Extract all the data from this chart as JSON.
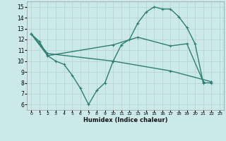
{
  "xlabel": "Humidex (Indice chaleur)",
  "ylabel": "",
  "bg_color": "#cce9e9",
  "grid_color": "#b8d4d4",
  "line_color": "#2e7d72",
  "line_width": 1.0,
  "markersize": 2.5,
  "xlim": [
    -0.5,
    23.5
  ],
  "ylim": [
    5.5,
    15.5
  ],
  "yticks": [
    6,
    7,
    8,
    9,
    10,
    11,
    12,
    13,
    14,
    15
  ],
  "xticks": [
    0,
    1,
    2,
    3,
    4,
    5,
    6,
    7,
    8,
    9,
    10,
    11,
    12,
    13,
    14,
    15,
    16,
    17,
    18,
    19,
    20,
    21,
    22,
    23
  ],
  "line1_x": [
    0,
    1,
    2,
    3,
    4,
    5,
    6,
    7,
    8,
    9,
    10,
    11,
    12,
    13,
    14,
    15,
    16,
    17,
    18,
    19,
    20,
    21,
    22
  ],
  "line1_y": [
    12.5,
    11.8,
    10.5,
    10.0,
    9.7,
    8.7,
    7.5,
    6.0,
    7.3,
    8.0,
    10.0,
    11.5,
    12.0,
    13.5,
    14.5,
    15.0,
    14.8,
    14.8,
    14.1,
    13.1,
    11.6,
    8.0,
    8.0
  ],
  "line2_x": [
    0,
    2,
    10,
    13,
    17,
    19,
    21
  ],
  "line2_y": [
    12.5,
    10.5,
    11.5,
    12.2,
    11.4,
    11.6,
    8.1
  ],
  "line3_x": [
    0,
    2,
    10,
    17,
    22
  ],
  "line3_y": [
    12.5,
    10.7,
    10.0,
    9.1,
    8.1
  ]
}
